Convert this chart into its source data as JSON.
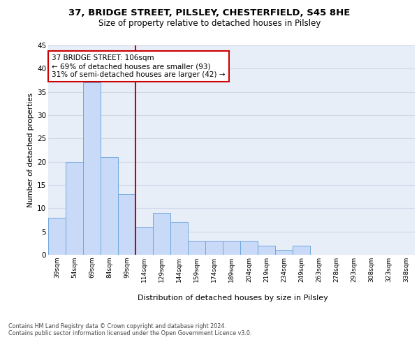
{
  "title1": "37, BRIDGE STREET, PILSLEY, CHESTERFIELD, S45 8HE",
  "title2": "Size of property relative to detached houses in Pilsley",
  "xlabel": "Distribution of detached houses by size in Pilsley",
  "ylabel": "Number of detached properties",
  "categories": [
    "39sqm",
    "54sqm",
    "69sqm",
    "84sqm",
    "99sqm",
    "114sqm",
    "129sqm",
    "144sqm",
    "159sqm",
    "174sqm",
    "189sqm",
    "204sqm",
    "219sqm",
    "234sqm",
    "249sqm",
    "263sqm",
    "278sqm",
    "293sqm",
    "308sqm",
    "323sqm",
    "338sqm"
  ],
  "values": [
    8,
    20,
    37,
    21,
    13,
    6,
    9,
    7,
    3,
    3,
    3,
    3,
    2,
    1,
    2,
    0,
    0,
    0,
    0,
    0,
    0
  ],
  "bar_color": "#c9daf8",
  "bar_edge_color": "#6fa8dc",
  "grid_color": "#d0d8e8",
  "background_color": "#e8eef8",
  "vline_color": "#cc0000",
  "annotation_text": "37 BRIDGE STREET: 106sqm\n← 69% of detached houses are smaller (93)\n31% of semi-detached houses are larger (42) →",
  "annotation_box_color": "#ffffff",
  "annotation_box_edge": "#cc0000",
  "ylim": [
    0,
    45
  ],
  "yticks": [
    0,
    5,
    10,
    15,
    20,
    25,
    30,
    35,
    40,
    45
  ],
  "footer": "Contains HM Land Registry data © Crown copyright and database right 2024.\nContains public sector information licensed under the Open Government Licence v3.0."
}
